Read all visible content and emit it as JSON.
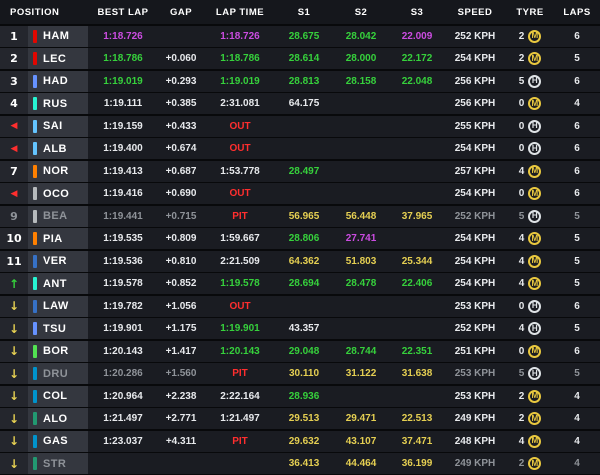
{
  "header": {
    "columns": [
      "POSITION",
      "BEST LAP",
      "GAP",
      "LAP TIME",
      "S1",
      "S2",
      "S3",
      "SPEED",
      "TYRE",
      "LAPS"
    ]
  },
  "colors": {
    "purple": "#cb4ce1",
    "green": "#36d13c",
    "yellow": "#e5cf52",
    "white": "#e8eaed",
    "red": "#ff2e2e",
    "gray": "#8f9399",
    "medium": "#e9c83f",
    "hard": "#dfe3e6"
  },
  "rows": [
    {
      "pos": "1",
      "team_color": "#e10600",
      "driver": "HAM",
      "best": "1:18.726",
      "best_c": "purple",
      "gap": "",
      "lap": "1:18.726",
      "lap_c": "purple",
      "s1": "28.675",
      "s1_c": "green",
      "s2": "28.042",
      "s2_c": "green",
      "s3": "22.009",
      "s3_c": "purple",
      "speed": "252 KPH",
      "tyre_age": "2",
      "tyre": "M",
      "laps": "6"
    },
    {
      "pos": "2",
      "team_color": "#e10600",
      "driver": "LEC",
      "best": "1:18.786",
      "best_c": "green",
      "gap": "+0.060",
      "lap": "1:18.786",
      "lap_c": "green",
      "s1": "28.614",
      "s1_c": "green",
      "s2": "28.000",
      "s2_c": "green",
      "s3": "22.172",
      "s3_c": "green",
      "speed": "254 KPH",
      "tyre_age": "2",
      "tyre": "M",
      "laps": "5"
    },
    {
      "pos": "3",
      "team_color": "#6692ff",
      "driver": "HAD",
      "best": "1:19.019",
      "best_c": "green",
      "gap": "+0.293",
      "lap": "1:19.019",
      "lap_c": "green",
      "s1": "28.813",
      "s1_c": "green",
      "s2": "28.158",
      "s2_c": "green",
      "s3": "22.048",
      "s3_c": "green",
      "speed": "256 KPH",
      "tyre_age": "5",
      "tyre": "H",
      "laps": "6"
    },
    {
      "pos": "4",
      "team_color": "#27f4d2",
      "driver": "RUS",
      "best": "1:19.111",
      "gap": "+0.385",
      "lap": "2:31.081",
      "s1": "64.175",
      "speed": "256 KPH",
      "tyre_age": "0",
      "tyre": "M",
      "laps": "4"
    },
    {
      "pos_icon": "red-left-arrow",
      "team_color": "#64c4ff",
      "driver": "SAI",
      "best": "1:19.159",
      "gap": "+0.433",
      "lap": "OUT",
      "lap_c": "red",
      "speed": "255 KPH",
      "tyre_age": "0",
      "tyre": "H",
      "laps": "6"
    },
    {
      "pos_icon": "red-left-arrow",
      "team_color": "#64c4ff",
      "driver": "ALB",
      "best": "1:19.400",
      "gap": "+0.674",
      "lap": "OUT",
      "lap_c": "red",
      "speed": "254 KPH",
      "tyre_age": "0",
      "tyre": "H",
      "laps": "6"
    },
    {
      "pos": "7",
      "team_color": "#ff8000",
      "driver": "NOR",
      "best": "1:19.413",
      "gap": "+0.687",
      "lap": "1:53.778",
      "s1": "28.497",
      "s1_c": "green",
      "speed": "257 KPH",
      "tyre_age": "4",
      "tyre": "M",
      "laps": "6"
    },
    {
      "pos_icon": "red-left-arrow",
      "team_color": "#b6babd",
      "driver": "OCO",
      "best": "1:19.416",
      "gap": "+0.690",
      "lap": "OUT",
      "lap_c": "red",
      "speed": "254 KPH",
      "tyre_age": "0",
      "tyre": "M",
      "laps": "6"
    },
    {
      "pos": "9",
      "dimmed": true,
      "team_color": "#b6babd",
      "driver": "BEA",
      "best": "1:19.441",
      "best_c": "gray",
      "gap": "+0.715",
      "gap_c": "gray",
      "lap": "PIT",
      "lap_c": "red",
      "s1": "56.965",
      "s1_c": "yellow",
      "s2": "56.448",
      "s2_c": "yellow",
      "s3": "37.965",
      "s3_c": "yellow",
      "speed": "252 KPH",
      "speed_c": "gray",
      "tyre_age": "5",
      "tyre": "H",
      "laps": "5",
      "laps_c": "gray"
    },
    {
      "pos": "10",
      "team_color": "#ff8000",
      "driver": "PIA",
      "best": "1:19.535",
      "gap": "+0.809",
      "lap": "1:59.667",
      "s1": "28.806",
      "s1_c": "green",
      "s2": "27.741",
      "s2_c": "purple",
      "speed": "254 KPH",
      "tyre_age": "4",
      "tyre": "M",
      "laps": "5"
    },
    {
      "pos": "11",
      "team_color": "#3671c6",
      "driver": "VER",
      "best": "1:19.536",
      "gap": "+0.810",
      "lap": "2:21.509",
      "s1": "64.362",
      "s1_c": "yellow",
      "s2": "51.803",
      "s2_c": "yellow",
      "s3": "25.344",
      "s3_c": "yellow",
      "speed": "254 KPH",
      "tyre_age": "4",
      "tyre": "M",
      "laps": "5"
    },
    {
      "pos_icon": "green-up-arrow",
      "team_color": "#27f4d2",
      "driver": "ANT",
      "best": "1:19.578",
      "gap": "+0.852",
      "lap": "1:19.578",
      "lap_c": "green",
      "s1": "28.694",
      "s1_c": "green",
      "s2": "28.478",
      "s2_c": "green",
      "s3": "22.406",
      "s3_c": "green",
      "speed": "254 KPH",
      "tyre_age": "4",
      "tyre": "M",
      "laps": "5"
    },
    {
      "pos_icon": "yellow-down-arrow",
      "team_color": "#3671c6",
      "driver": "LAW",
      "best": "1:19.782",
      "gap": "+1.056",
      "lap": "OUT",
      "lap_c": "red",
      "speed": "253 KPH",
      "tyre_age": "0",
      "tyre": "H",
      "laps": "6"
    },
    {
      "pos_icon": "yellow-down-arrow",
      "team_color": "#6692ff",
      "driver": "TSU",
      "best": "1:19.901",
      "gap": "+1.175",
      "lap": "1:19.901",
      "lap_c": "green",
      "s1": "43.357",
      "speed": "252 KPH",
      "tyre_age": "4",
      "tyre": "H",
      "laps": "5"
    },
    {
      "pos_icon": "yellow-down-arrow",
      "team_color": "#52e252",
      "driver": "BOR",
      "best": "1:20.143",
      "gap": "+1.417",
      "lap": "1:20.143",
      "lap_c": "green",
      "s1": "29.048",
      "s1_c": "green",
      "s2": "28.744",
      "s2_c": "green",
      "s3": "22.351",
      "s3_c": "green",
      "speed": "251 KPH",
      "tyre_age": "0",
      "tyre": "M",
      "laps": "6"
    },
    {
      "pos_icon": "yellow-down-arrow",
      "dimmed": true,
      "team_color": "#0093cc",
      "driver": "DRU",
      "best": "1:20.286",
      "best_c": "gray",
      "gap": "+1.560",
      "gap_c": "gray",
      "lap": "PIT",
      "lap_c": "red",
      "s1": "30.110",
      "s1_c": "yellow",
      "s2": "31.122",
      "s2_c": "yellow",
      "s3": "31.638",
      "s3_c": "yellow",
      "speed": "253 KPH",
      "speed_c": "gray",
      "tyre_age": "5",
      "tyre": "H",
      "laps": "5",
      "laps_c": "gray"
    },
    {
      "pos_icon": "yellow-down-arrow",
      "team_color": "#0093cc",
      "driver": "COL",
      "best": "1:20.964",
      "gap": "+2.238",
      "lap": "2:22.164",
      "s1": "28.936",
      "s1_c": "green",
      "speed": "253 KPH",
      "tyre_age": "2",
      "tyre": "M",
      "laps": "4"
    },
    {
      "pos_icon": "yellow-down-arrow",
      "team_color": "#229971",
      "driver": "ALO",
      "best": "1:21.497",
      "gap": "+2.771",
      "lap": "1:21.497",
      "s1": "29.513",
      "s1_c": "yellow",
      "s2": "29.471",
      "s2_c": "yellow",
      "s3": "22.513",
      "s3_c": "yellow",
      "speed": "249 KPH",
      "tyre_age": "2",
      "tyre": "M",
      "laps": "4"
    },
    {
      "pos_icon": "yellow-down-arrow",
      "team_color": "#0093cc",
      "driver": "GAS",
      "best": "1:23.037",
      "gap": "+4.311",
      "lap": "PIT",
      "lap_c": "red",
      "s1": "29.632",
      "s1_c": "yellow",
      "s2": "43.107",
      "s2_c": "yellow",
      "s3": "37.471",
      "s3_c": "yellow",
      "speed": "248 KPH",
      "tyre_age": "4",
      "tyre": "M",
      "laps": "4"
    },
    {
      "pos_icon": "yellow-down-arrow",
      "dimmed": true,
      "team_color": "#229971",
      "driver": "STR",
      "best": "",
      "gap": "",
      "lap": "",
      "s1": "36.413",
      "s1_c": "yellow",
      "s2": "44.464",
      "s2_c": "yellow",
      "s3": "36.199",
      "s3_c": "yellow",
      "speed": "249 KPH",
      "speed_c": "gray",
      "tyre_age": "2",
      "tyre": "M",
      "laps": "4",
      "laps_c": "gray"
    }
  ]
}
